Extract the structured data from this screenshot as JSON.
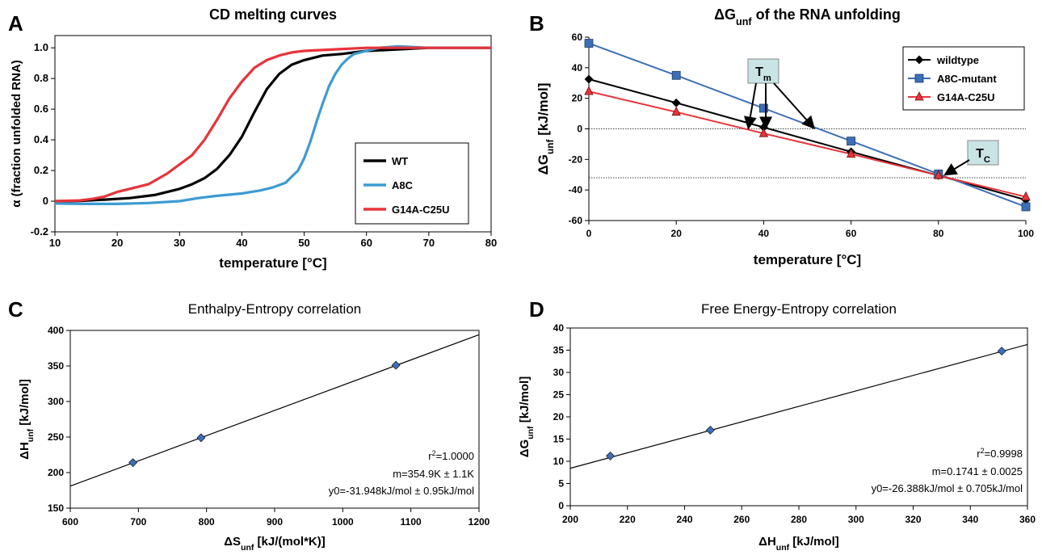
{
  "panels": {
    "A": {
      "letter": "A"
    },
    "B": {
      "letter": "B"
    },
    "C": {
      "letter": "C"
    },
    "D": {
      "letter": "D"
    }
  },
  "chart_data": [
    {
      "id": "A",
      "type": "line",
      "title": "CD melting curves",
      "xlabel": "temperature [°C]",
      "ylabel": "α (fraction unfolded RNA)",
      "xlim": [
        10,
        80
      ],
      "ylim": [
        -0.2,
        1.08
      ],
      "xticks": [
        "10",
        "20",
        "30",
        "40",
        "50",
        "60",
        "70",
        "80"
      ],
      "yticks": [
        "-0.2",
        "0",
        "0.2",
        "0.4",
        "0.6",
        "0.8",
        "1.0"
      ],
      "legend": "bottom-right",
      "grid": false,
      "series": [
        {
          "name": "WT",
          "color": "#000000",
          "x": [
            10,
            14,
            18,
            22,
            26,
            30,
            32,
            34,
            36,
            38,
            40,
            42,
            44,
            46,
            48,
            50,
            53,
            56,
            60,
            65,
            70,
            75,
            80
          ],
          "y": [
            0.0,
            0.002,
            0.01,
            0.02,
            0.04,
            0.08,
            0.11,
            0.15,
            0.21,
            0.3,
            0.42,
            0.58,
            0.73,
            0.83,
            0.89,
            0.92,
            0.95,
            0.96,
            0.98,
            0.99,
            1.0,
            1.0,
            1.0
          ]
        },
        {
          "name": "A8C",
          "color": "#3d9bd2",
          "x": [
            10,
            15,
            20,
            25,
            30,
            33,
            36,
            40,
            43,
            45,
            47,
            49,
            50,
            51,
            52,
            53,
            54,
            55,
            56,
            57,
            58,
            60,
            62,
            65,
            70,
            75,
            80
          ],
          "y": [
            -0.015,
            -0.018,
            -0.018,
            -0.012,
            0.0,
            0.02,
            0.035,
            0.05,
            0.07,
            0.09,
            0.12,
            0.2,
            0.28,
            0.39,
            0.52,
            0.64,
            0.75,
            0.83,
            0.89,
            0.93,
            0.96,
            0.98,
            1.0,
            1.01,
            1.0,
            1.0,
            1.0
          ]
        },
        {
          "name": "G14A-C25U",
          "color": "#e8333a",
          "x": [
            10,
            14,
            16,
            18,
            20,
            22,
            25,
            28,
            30,
            32,
            34,
            36,
            38,
            40,
            42,
            44,
            46,
            48,
            50,
            55,
            60,
            65,
            70,
            75,
            80
          ],
          "y": [
            0.0,
            0.005,
            0.015,
            0.03,
            0.06,
            0.08,
            0.11,
            0.18,
            0.24,
            0.3,
            0.4,
            0.53,
            0.67,
            0.78,
            0.87,
            0.92,
            0.95,
            0.97,
            0.98,
            0.99,
            1.0,
            1.0,
            1.0,
            1.0,
            1.0
          ]
        }
      ]
    },
    {
      "id": "B",
      "type": "line",
      "title": "ΔG",
      "title_sub": "unf",
      "title_rest": " of the RNA unfolding",
      "xlabel": "temperature [°C]",
      "ylabel": "ΔG",
      "ylabel_sub": "unf",
      "ylabel_rest": " [kJ/mol]",
      "xlim": [
        0,
        100
      ],
      "ylim": [
        -60,
        60
      ],
      "xticks": [
        "0",
        "20",
        "40",
        "60",
        "80",
        "100"
      ],
      "yticks": [
        "-60",
        "-40",
        "-20",
        "0",
        "20",
        "40",
        "60"
      ],
      "legend": "top-right",
      "reference_lines": [
        0,
        -32
      ],
      "series": [
        {
          "name": "wildtype",
          "color": "#000000",
          "marker": "diamond",
          "x": [
            0,
            20,
            40,
            60,
            80,
            100
          ],
          "y": [
            32.5,
            17,
            1,
            -15,
            -30.5,
            -46.5
          ]
        },
        {
          "name": "A8C-mutant",
          "color": "#3d6fb8",
          "marker": "square",
          "x": [
            0,
            20,
            40,
            60,
            80,
            100
          ],
          "y": [
            56,
            35,
            13.5,
            -8,
            -29.5,
            -51
          ]
        },
        {
          "name": "G14A-C25U",
          "color": "#e8333a",
          "marker": "triangle",
          "x": [
            0,
            20,
            40,
            60,
            80,
            100
          ],
          "y": [
            24.5,
            11,
            -3,
            -16.5,
            -30.5,
            -44.5
          ]
        }
      ],
      "annotations": [
        {
          "label": "T",
          "sub": "m"
        },
        {
          "label": "T",
          "sub": "C"
        }
      ]
    },
    {
      "id": "C",
      "type": "scatter",
      "title": "Enthalpy-Entropy correlation",
      "xlabel": "ΔS",
      "xlabel_sub": "unf",
      "xlabel_rest": " [kJ/(mol*K)]",
      "ylabel": "ΔH",
      "ylabel_sub": "unf",
      "ylabel_rest": " [kJ/mol]",
      "xlim": [
        600,
        1200
      ],
      "ylim": [
        150,
        400
      ],
      "xticks": [
        "600",
        "700",
        "800",
        "900",
        "1000",
        "1100",
        "1200"
      ],
      "yticks": [
        "150",
        "200",
        "250",
        "300",
        "350",
        "400"
      ],
      "points": {
        "x": [
          692,
          792,
          1078
        ],
        "y": [
          214,
          249,
          351
        ]
      },
      "fit": {
        "slope": 0.3549,
        "intercept": -31.948
      },
      "stats": [
        "1.0000",
        "m=354.9K ± 1.1K",
        "y0=-31.948kJ/mol ± 0.95kJ/mol"
      ],
      "r2_prefix": "r",
      "r2_exp": "2",
      "r2_eq": "=",
      "marker_color": "#3d6fb8"
    },
    {
      "id": "D",
      "type": "scatter",
      "title": "Free Energy-Entropy correlation",
      "xlabel": "ΔH",
      "xlabel_sub": "unf",
      "xlabel_rest": " [kJ/mol]",
      "ylabel": "ΔG",
      "ylabel_sub": "unf",
      "ylabel_rest": " [kJ/mol]",
      "xlim": [
        200,
        360
      ],
      "ylim": [
        0,
        40
      ],
      "xticks": [
        "200",
        "220",
        "240",
        "260",
        "280",
        "300",
        "320",
        "340",
        "360"
      ],
      "yticks": [
        "0",
        "5",
        "10",
        "15",
        "20",
        "25",
        "30",
        "35",
        "40"
      ],
      "points": {
        "x": [
          214,
          249,
          351
        ],
        "y": [
          11.2,
          17,
          34.8
        ]
      },
      "fit": {
        "slope": 0.1741,
        "intercept": -26.388
      },
      "stats": [
        "0.9998",
        "m=0.1741 ± 0.0025",
        "y0=-26.388kJ/mol ± 0.705kJ/mol"
      ],
      "r2_prefix": "r",
      "r2_exp": "2",
      "r2_eq": "=",
      "marker_color": "#3d6fb8"
    }
  ]
}
